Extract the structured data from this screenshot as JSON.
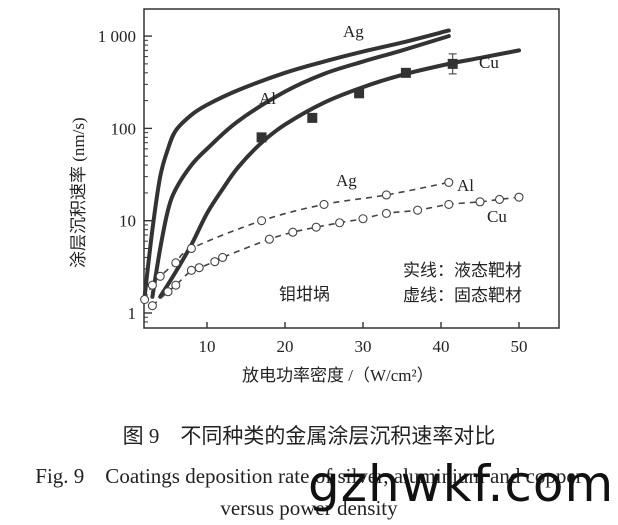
{
  "chart_data": {
    "type": "line",
    "title": "",
    "xlabel": "放电功率密度 /（W/cm²）",
    "ylabel": "涂层沉积速率 (nm/s)",
    "xlim": [
      2,
      55
    ],
    "ylim": [
      0.75,
      1800
    ],
    "yscale": "log",
    "x_ticks": [
      10,
      20,
      30,
      40,
      50
    ],
    "y_ticks": [
      1,
      10,
      100,
      1000
    ],
    "y_tick_labels": [
      "1",
      "10",
      "100",
      "1 000"
    ],
    "grid": false,
    "annotations": [
      "Ag",
      "Al",
      "Cu",
      "Ag",
      "Al",
      "Cu",
      "钼坩埚",
      "实线：液态靶材",
      "虚线：固态靶材"
    ],
    "series": [
      {
        "name": "Ag (liquid target)",
        "style": "solid",
        "x": [
          2,
          3,
          4,
          5,
          6,
          8,
          10,
          14,
          20,
          25,
          30,
          35,
          41
        ],
        "y": [
          1.5,
          8,
          30,
          60,
          95,
          140,
          180,
          260,
          400,
          530,
          680,
          850,
          1150
        ]
      },
      {
        "name": "Al (liquid target)",
        "style": "solid",
        "x": [
          3,
          4,
          5,
          6,
          8,
          10,
          14,
          20,
          25,
          30,
          35,
          41
        ],
        "y": [
          1.5,
          5,
          13,
          22,
          40,
          60,
          120,
          250,
          390,
          530,
          700,
          1000
        ]
      },
      {
        "name": "Cu (liquid target)",
        "style": "solid",
        "x": [
          4,
          6,
          8,
          10,
          12,
          14,
          17,
          20,
          25,
          30,
          35,
          41,
          45,
          50
        ],
        "y": [
          1.5,
          2.8,
          5.5,
          12,
          22,
          38,
          70,
          110,
          190,
          280,
          380,
          500,
          580,
          700
        ]
      },
      {
        "name": "Cu measured (liquid)",
        "style": "marker-square",
        "x": [
          17,
          23.5,
          29.5,
          35.5,
          41.5
        ],
        "y": [
          80,
          130,
          240,
          400,
          500
        ]
      },
      {
        "name": "Ag/Al (solid target)",
        "style": "dashed-circle",
        "x": [
          2,
          3,
          4,
          6,
          8,
          17,
          25,
          33,
          41
        ],
        "y": [
          1.4,
          2,
          2.5,
          3.5,
          5,
          10,
          15,
          19,
          26
        ]
      },
      {
        "name": "Cu (solid target)",
        "style": "dashed-circle",
        "x": [
          3,
          5,
          6,
          8,
          9,
          11,
          12,
          18,
          21,
          24,
          27,
          30,
          33,
          37,
          41,
          45,
          47.5,
          50
        ],
        "y": [
          1.2,
          1.7,
          2,
          2.9,
          3.1,
          3.6,
          4.0,
          6.3,
          7.5,
          8.5,
          9.5,
          10.5,
          12,
          13,
          15,
          16,
          17,
          18
        ]
      }
    ]
  },
  "labels": {
    "ag_solid": "Ag",
    "al_solid": "Al",
    "cu_solid": "Cu",
    "ag_dashed": "Ag",
    "al_dashed": "Al",
    "cu_dashed": "Cu",
    "crucible": "钼坩埚",
    "legend_solid": "实线：液态靶材",
    "legend_dashed": "虚线：固态靶材",
    "xlabel": "放电功率密度 /（W/cm²）",
    "ylabel": "涂层沉积速率 (nm/s)"
  },
  "caption": {
    "cn": "图 9　不同种类的金属涂层沉积速率对比",
    "en_line1": "Fig. 9　Coatings deposition rate of silver, aluminium and copper",
    "en_line2": "versus power density"
  },
  "watermark": "gzhwkf.com"
}
